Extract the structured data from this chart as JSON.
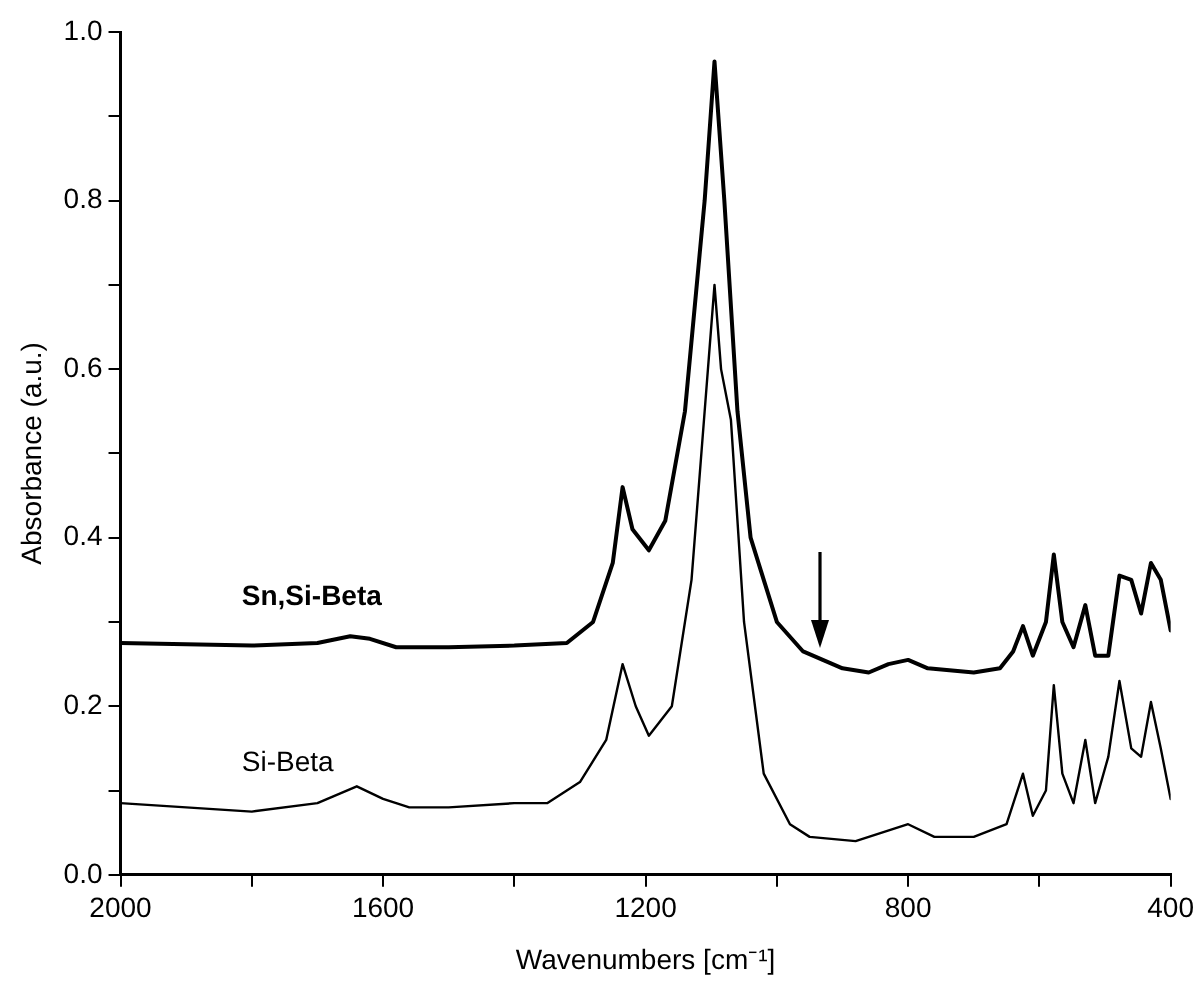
{
  "chart_data": {
    "type": "line",
    "xlabel": "Wavenumbers [cm⁻¹]",
    "ylabel": "Absorbance (a.u.)",
    "xlim": [
      2000,
      400
    ],
    "ylim": [
      0,
      1.0
    ],
    "xticks": [
      2000,
      {
        "value": 1800,
        "label": null
      },
      1600,
      {
        "value": 1400,
        "label": null
      },
      1200,
      {
        "value": 1000,
        "label": null
      },
      800,
      {
        "value": 600,
        "label": null
      },
      400
    ],
    "yticks": [
      {
        "value": 0,
        "label": "0.0"
      },
      {
        "value": 0.1,
        "label": null
      },
      {
        "value": 0.2,
        "label": "0.2"
      },
      {
        "value": 0.3,
        "label": null
      },
      {
        "value": 0.4,
        "label": "0.4"
      },
      {
        "value": 0.5,
        "label": null
      },
      {
        "value": 0.6,
        "label": "0.6"
      },
      {
        "value": 0.7,
        "label": null
      },
      {
        "value": 0.8,
        "label": "0.8"
      },
      {
        "value": 0.9,
        "label": null
      },
      {
        "value": 1.0,
        "label": "1.0"
      }
    ],
    "grid": false,
    "legend": false,
    "marker": "none",
    "line_style": "solid",
    "series": [
      {
        "name": "Sn,Si-Beta",
        "color": "#000000",
        "x": [
          2000,
          1800,
          1700,
          1650,
          1620,
          1580,
          1500,
          1400,
          1320,
          1280,
          1250,
          1235,
          1220,
          1195,
          1170,
          1140,
          1110,
          1095,
          1080,
          1060,
          1040,
          1000,
          960,
          900,
          860,
          830,
          800,
          770,
          700,
          660,
          640,
          625,
          610,
          590,
          578,
          565,
          548,
          530,
          515,
          495,
          478,
          460,
          445,
          430,
          415,
          400
        ],
        "values": [
          0.275,
          0.272,
          0.275,
          0.283,
          0.28,
          0.27,
          0.27,
          0.272,
          0.275,
          0.3,
          0.37,
          0.46,
          0.41,
          0.385,
          0.42,
          0.55,
          0.8,
          0.965,
          0.8,
          0.55,
          0.4,
          0.3,
          0.265,
          0.245,
          0.24,
          0.25,
          0.255,
          0.245,
          0.24,
          0.245,
          0.265,
          0.295,
          0.26,
          0.3,
          0.38,
          0.3,
          0.27,
          0.32,
          0.26,
          0.26,
          0.355,
          0.35,
          0.31,
          0.37,
          0.35,
          0.29
        ]
      },
      {
        "name": "Si-Beta",
        "color": "#000000",
        "x": [
          2000,
          1800,
          1700,
          1640,
          1600,
          1560,
          1500,
          1400,
          1350,
          1300,
          1260,
          1235,
          1215,
          1195,
          1160,
          1130,
          1110,
          1095,
          1085,
          1070,
          1050,
          1020,
          980,
          950,
          880,
          840,
          800,
          760,
          700,
          650,
          625,
          610,
          590,
          578,
          565,
          548,
          530,
          515,
          495,
          478,
          460,
          445,
          430,
          415,
          400
        ],
        "values": [
          0.085,
          0.075,
          0.085,
          0.105,
          0.09,
          0.08,
          0.08,
          0.085,
          0.085,
          0.11,
          0.16,
          0.25,
          0.2,
          0.165,
          0.2,
          0.35,
          0.55,
          0.7,
          0.6,
          0.54,
          0.3,
          0.12,
          0.06,
          0.045,
          0.04,
          0.05,
          0.06,
          0.045,
          0.045,
          0.06,
          0.12,
          0.07,
          0.1,
          0.225,
          0.12,
          0.085,
          0.16,
          0.085,
          0.14,
          0.23,
          0.15,
          0.14,
          0.205,
          0.15,
          0.09
        ]
      }
    ]
  }
}
